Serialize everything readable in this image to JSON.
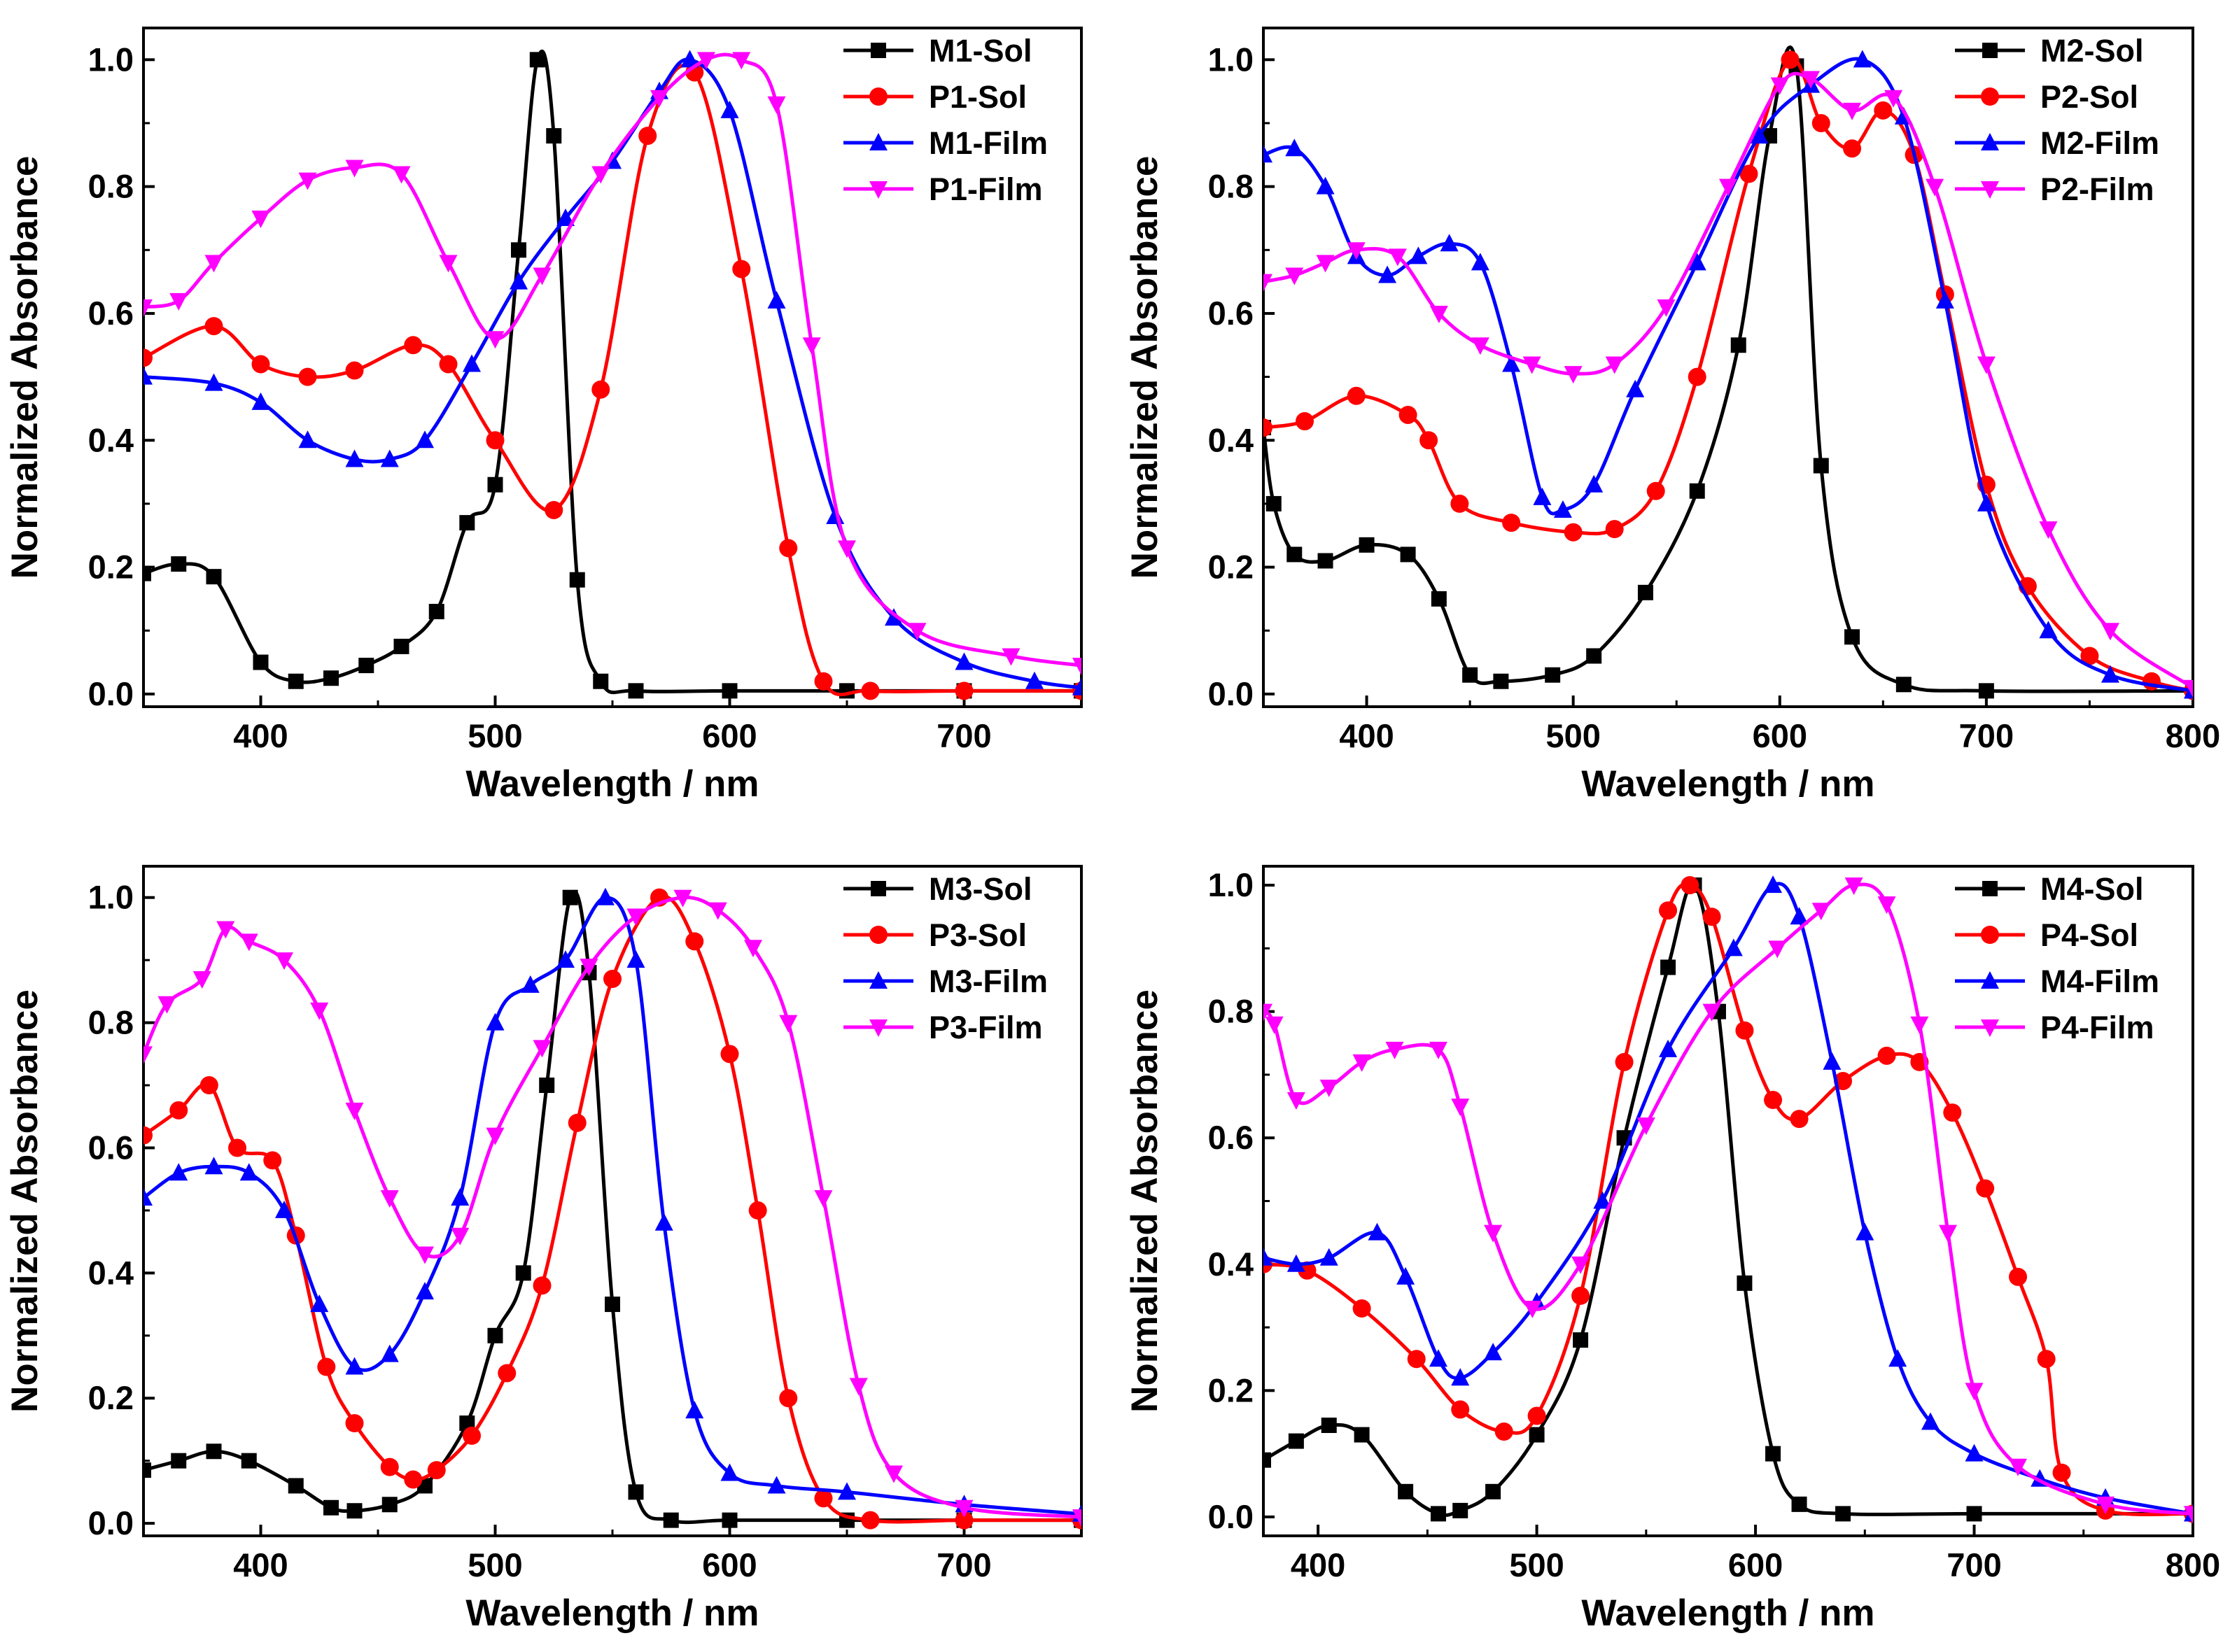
{
  "chart_data": [
    {
      "type": "line",
      "xlabel": "Wavelength / nm",
      "ylabel": "Normalized Absorbance",
      "xlim": [
        350,
        750
      ],
      "ylim": [
        -0.02,
        1.05
      ],
      "xticks": [
        400,
        500,
        600,
        700
      ],
      "yticks": [
        0.0,
        0.2,
        0.4,
        0.6,
        0.8,
        1.0
      ],
      "legend_position": "top-right",
      "series": [
        {
          "name": "M1-Sol",
          "color": "#000000",
          "marker": "square",
          "x": [
            350,
            365,
            380,
            400,
            415,
            430,
            445,
            460,
            475,
            488,
            500,
            510,
            518,
            525,
            535,
            545,
            560,
            600,
            650,
            700,
            750
          ],
          "y": [
            0.19,
            0.205,
            0.185,
            0.05,
            0.02,
            0.025,
            0.045,
            0.075,
            0.13,
            0.27,
            0.33,
            0.7,
            1.0,
            0.88,
            0.18,
            0.02,
            0.005,
            0.005,
            0.005,
            0.005,
            0.005
          ]
        },
        {
          "name": "P1-Sol",
          "color": "#ff0000",
          "marker": "circle",
          "x": [
            350,
            380,
            400,
            420,
            440,
            465,
            480,
            500,
            525,
            545,
            565,
            585,
            605,
            625,
            640,
            660,
            700,
            750
          ],
          "y": [
            0.53,
            0.58,
            0.52,
            0.5,
            0.51,
            0.55,
            0.52,
            0.4,
            0.29,
            0.48,
            0.88,
            0.98,
            0.67,
            0.23,
            0.02,
            0.005,
            0.005,
            0.005
          ]
        },
        {
          "name": "M1-Film",
          "color": "#0000ff",
          "marker": "triangle-up",
          "x": [
            350,
            380,
            400,
            420,
            440,
            455,
            470,
            490,
            510,
            530,
            550,
            570,
            583,
            600,
            620,
            645,
            670,
            700,
            730,
            750
          ],
          "y": [
            0.5,
            0.49,
            0.46,
            0.4,
            0.37,
            0.37,
            0.4,
            0.52,
            0.65,
            0.75,
            0.84,
            0.95,
            1.0,
            0.92,
            0.62,
            0.28,
            0.12,
            0.05,
            0.02,
            0.01
          ]
        },
        {
          "name": "P1-Film",
          "color": "#ff00ff",
          "marker": "triangle-down",
          "x": [
            350,
            365,
            380,
            400,
            420,
            440,
            460,
            480,
            500,
            520,
            545,
            570,
            590,
            605,
            620,
            635,
            650,
            680,
            720,
            750
          ],
          "y": [
            0.61,
            0.62,
            0.68,
            0.75,
            0.81,
            0.83,
            0.82,
            0.68,
            0.56,
            0.66,
            0.82,
            0.94,
            1.0,
            1.0,
            0.93,
            0.55,
            0.23,
            0.1,
            0.06,
            0.045
          ]
        }
      ]
    },
    {
      "type": "line",
      "xlabel": "Wavelength / nm",
      "ylabel": "Normalized Absorbance",
      "xlim": [
        350,
        800
      ],
      "ylim": [
        -0.02,
        1.05
      ],
      "xticks": [
        400,
        500,
        600,
        700,
        800
      ],
      "yticks": [
        0.0,
        0.2,
        0.4,
        0.6,
        0.8,
        1.0
      ],
      "legend_position": "top-right",
      "series": [
        {
          "name": "M2-Sol",
          "color": "#000000",
          "marker": "square",
          "x": [
            350,
            355,
            365,
            380,
            400,
            420,
            435,
            450,
            465,
            490,
            510,
            535,
            560,
            580,
            595,
            608,
            620,
            635,
            660,
            700,
            800
          ],
          "y": [
            0.42,
            0.3,
            0.22,
            0.21,
            0.235,
            0.22,
            0.15,
            0.03,
            0.02,
            0.03,
            0.06,
            0.16,
            0.32,
            0.55,
            0.88,
            0.99,
            0.36,
            0.09,
            0.015,
            0.005,
            0.005
          ]
        },
        {
          "name": "P2-Sol",
          "color": "#ff0000",
          "marker": "circle",
          "x": [
            350,
            370,
            395,
            420,
            430,
            445,
            470,
            500,
            520,
            540,
            560,
            585,
            605,
            620,
            635,
            650,
            665,
            680,
            700,
            720,
            750,
            780,
            800
          ],
          "y": [
            0.42,
            0.43,
            0.47,
            0.44,
            0.4,
            0.3,
            0.27,
            0.255,
            0.26,
            0.32,
            0.5,
            0.82,
            1.0,
            0.9,
            0.86,
            0.92,
            0.85,
            0.63,
            0.33,
            0.17,
            0.06,
            0.02,
            0.005
          ]
        },
        {
          "name": "M2-Film",
          "color": "#0000ff",
          "marker": "triangle-up",
          "x": [
            350,
            365,
            380,
            395,
            410,
            425,
            440,
            455,
            470,
            485,
            495,
            510,
            530,
            560,
            590,
            615,
            640,
            660,
            680,
            700,
            730,
            760,
            800
          ],
          "y": [
            0.85,
            0.86,
            0.8,
            0.69,
            0.66,
            0.69,
            0.71,
            0.68,
            0.52,
            0.31,
            0.29,
            0.33,
            0.48,
            0.68,
            0.88,
            0.96,
            1.0,
            0.91,
            0.62,
            0.3,
            0.1,
            0.03,
            0.005
          ]
        },
        {
          "name": "P2-Film",
          "color": "#ff00ff",
          "marker": "triangle-down",
          "x": [
            350,
            365,
            380,
            395,
            415,
            435,
            455,
            480,
            500,
            520,
            545,
            575,
            600,
            615,
            635,
            655,
            675,
            700,
            730,
            760,
            800
          ],
          "y": [
            0.65,
            0.66,
            0.68,
            0.7,
            0.69,
            0.6,
            0.55,
            0.52,
            0.505,
            0.52,
            0.61,
            0.8,
            0.96,
            0.97,
            0.92,
            0.94,
            0.8,
            0.52,
            0.26,
            0.1,
            0.01
          ]
        }
      ]
    },
    {
      "type": "line",
      "xlabel": "Wavelength / nm",
      "ylabel": "Normalized Absorbance",
      "xlim": [
        350,
        750
      ],
      "ylim": [
        -0.02,
        1.05
      ],
      "xticks": [
        400,
        500,
        600,
        700
      ],
      "yticks": [
        0.0,
        0.2,
        0.4,
        0.6,
        0.8,
        1.0
      ],
      "legend_position": "top-right",
      "series": [
        {
          "name": "M3-Sol",
          "color": "#000000",
          "marker": "square",
          "x": [
            350,
            365,
            380,
            395,
            415,
            430,
            440,
            455,
            470,
            488,
            500,
            512,
            522,
            532,
            540,
            550,
            560,
            575,
            600,
            650,
            700,
            750
          ],
          "y": [
            0.085,
            0.1,
            0.115,
            0.1,
            0.06,
            0.025,
            0.02,
            0.03,
            0.06,
            0.16,
            0.3,
            0.4,
            0.7,
            1.0,
            0.88,
            0.35,
            0.05,
            0.005,
            0.005,
            0.005,
            0.005,
            0.005
          ]
        },
        {
          "name": "P3-Sol",
          "color": "#ff0000",
          "marker": "circle",
          "x": [
            350,
            365,
            378,
            390,
            405,
            415,
            428,
            440,
            455,
            465,
            475,
            490,
            505,
            520,
            535,
            550,
            570,
            585,
            600,
            612,
            625,
            640,
            660,
            700,
            750
          ],
          "y": [
            0.62,
            0.66,
            0.7,
            0.6,
            0.58,
            0.46,
            0.25,
            0.16,
            0.09,
            0.07,
            0.085,
            0.14,
            0.24,
            0.38,
            0.64,
            0.87,
            1.0,
            0.93,
            0.75,
            0.5,
            0.2,
            0.04,
            0.005,
            0.005,
            0.005
          ]
        },
        {
          "name": "M3-Film",
          "color": "#0000ff",
          "marker": "triangle-up",
          "x": [
            350,
            365,
            380,
            395,
            410,
            425,
            440,
            455,
            470,
            485,
            500,
            515,
            530,
            547,
            560,
            572,
            585,
            600,
            620,
            650,
            700,
            750
          ],
          "y": [
            0.52,
            0.56,
            0.57,
            0.56,
            0.5,
            0.35,
            0.25,
            0.27,
            0.37,
            0.52,
            0.8,
            0.86,
            0.9,
            1.0,
            0.9,
            0.48,
            0.18,
            0.08,
            0.06,
            0.05,
            0.03,
            0.015
          ]
        },
        {
          "name": "P3-Film",
          "color": "#ff00ff",
          "marker": "triangle-down",
          "x": [
            350,
            360,
            375,
            385,
            395,
            410,
            425,
            440,
            455,
            470,
            485,
            500,
            520,
            540,
            560,
            580,
            595,
            610,
            625,
            640,
            655,
            670,
            700,
            750
          ],
          "y": [
            0.75,
            0.83,
            0.87,
            0.95,
            0.93,
            0.9,
            0.82,
            0.66,
            0.52,
            0.43,
            0.46,
            0.62,
            0.76,
            0.89,
            0.97,
            1.0,
            0.98,
            0.92,
            0.8,
            0.52,
            0.22,
            0.08,
            0.025,
            0.01
          ]
        }
      ]
    },
    {
      "type": "line",
      "xlabel": "Wavelength / nm",
      "ylabel": "Normalized Absorbance",
      "xlim": [
        375,
        800
      ],
      "ylim": [
        -0.03,
        1.03
      ],
      "xticks": [
        400,
        500,
        600,
        700,
        800
      ],
      "yticks": [
        0.0,
        0.2,
        0.4,
        0.6,
        0.8,
        1.0
      ],
      "legend_position": "top-right",
      "series": [
        {
          "name": "M4-Sol",
          "color": "#000000",
          "marker": "square",
          "x": [
            375,
            390,
            405,
            420,
            440,
            455,
            465,
            480,
            500,
            520,
            540,
            560,
            572,
            583,
            595,
            608,
            620,
            640,
            700,
            800
          ],
          "y": [
            0.09,
            0.12,
            0.145,
            0.13,
            0.04,
            0.005,
            0.01,
            0.04,
            0.13,
            0.28,
            0.6,
            0.87,
            1.0,
            0.8,
            0.37,
            0.1,
            0.02,
            0.005,
            0.005,
            0.005
          ]
        },
        {
          "name": "P4-Sol",
          "color": "#ff0000",
          "marker": "circle",
          "x": [
            375,
            395,
            420,
            445,
            465,
            485,
            500,
            520,
            540,
            560,
            570,
            580,
            595,
            608,
            620,
            640,
            660,
            675,
            690,
            705,
            720,
            733,
            740,
            760,
            800
          ],
          "y": [
            0.4,
            0.39,
            0.33,
            0.25,
            0.17,
            0.135,
            0.16,
            0.35,
            0.72,
            0.96,
            1.0,
            0.95,
            0.77,
            0.66,
            0.63,
            0.69,
            0.73,
            0.72,
            0.64,
            0.52,
            0.38,
            0.25,
            0.07,
            0.01,
            0.005
          ]
        },
        {
          "name": "M4-Film",
          "color": "#0000ff",
          "marker": "triangle-up",
          "x": [
            375,
            390,
            405,
            427,
            440,
            455,
            465,
            480,
            500,
            530,
            560,
            590,
            608,
            620,
            635,
            650,
            665,
            680,
            700,
            730,
            760,
            800
          ],
          "y": [
            0.41,
            0.4,
            0.41,
            0.45,
            0.38,
            0.25,
            0.22,
            0.26,
            0.34,
            0.5,
            0.74,
            0.9,
            1.0,
            0.95,
            0.72,
            0.45,
            0.25,
            0.15,
            0.1,
            0.06,
            0.03,
            0.005
          ]
        },
        {
          "name": "P4-Film",
          "color": "#ff00ff",
          "marker": "triangle-down",
          "x": [
            375,
            380,
            390,
            405,
            420,
            435,
            455,
            465,
            480,
            498,
            520,
            550,
            580,
            610,
            630,
            645,
            660,
            675,
            688,
            700,
            720,
            760,
            800
          ],
          "y": [
            0.8,
            0.78,
            0.66,
            0.68,
            0.72,
            0.74,
            0.74,
            0.65,
            0.45,
            0.33,
            0.4,
            0.62,
            0.8,
            0.9,
            0.96,
            1.0,
            0.97,
            0.78,
            0.45,
            0.2,
            0.08,
            0.02,
            0.005
          ]
        }
      ]
    }
  ]
}
